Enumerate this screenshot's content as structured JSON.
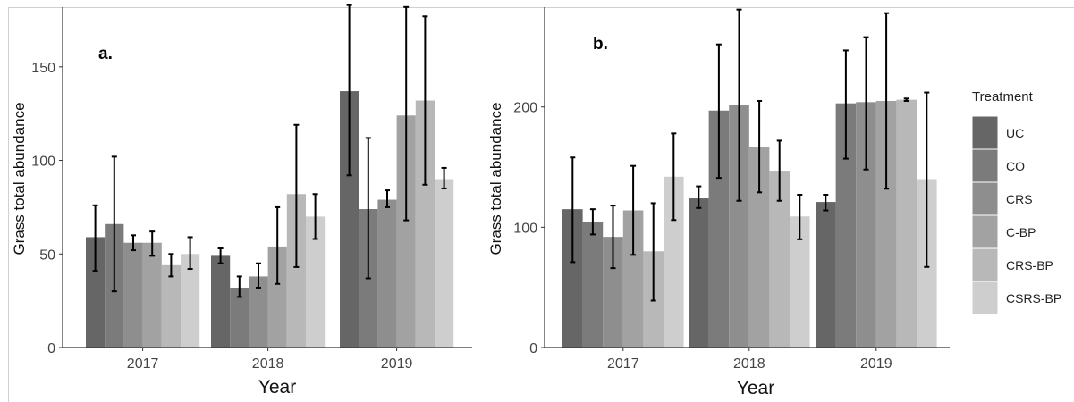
{
  "chart_data": [
    {
      "type": "bar",
      "panel_label": "a.",
      "xlabel": "Year",
      "ylabel": "Grass total abundance",
      "categories": [
        "2017",
        "2018",
        "2019"
      ],
      "ylim": [
        0,
        180
      ],
      "yticks": [
        0,
        50,
        100,
        150
      ],
      "grid": false,
      "series": [
        {
          "name": "UC",
          "values": [
            59,
            49,
            137
          ],
          "error": [
            [
              41,
              76
            ],
            [
              45,
              53
            ],
            [
              92,
              183
            ]
          ]
        },
        {
          "name": "CO",
          "values": [
            66,
            32,
            74
          ],
          "error": [
            [
              30,
              102
            ],
            [
              27,
              38
            ],
            [
              37,
              112
            ]
          ]
        },
        {
          "name": "CRS",
          "values": [
            56,
            38,
            79
          ],
          "error": [
            [
              52,
              60
            ],
            [
              32,
              45
            ],
            [
              75,
              84
            ]
          ]
        },
        {
          "name": "C-BP",
          "values": [
            56,
            54,
            124
          ],
          "error": [
            [
              49,
              62
            ],
            [
              34,
              75
            ],
            [
              68,
              182
            ]
          ]
        },
        {
          "name": "CRS-BP",
          "values": [
            44,
            82,
            132
          ],
          "error": [
            [
              38,
              50
            ],
            [
              43,
              119
            ],
            [
              87,
              177
            ]
          ]
        },
        {
          "name": "CSRS-BP",
          "values": [
            50,
            70,
            90
          ],
          "error": [
            [
              42,
              59
            ],
            [
              58,
              82
            ],
            [
              85,
              96
            ]
          ]
        }
      ]
    },
    {
      "type": "bar",
      "panel_label": "b.",
      "xlabel": "Year",
      "ylabel": "Grass total abundance",
      "categories": [
        "2017",
        "2018",
        "2019"
      ],
      "ylim": [
        0,
        280
      ],
      "yticks": [
        0,
        100,
        200
      ],
      "grid": false,
      "series": [
        {
          "name": "UC",
          "values": [
            115,
            124,
            121
          ],
          "error": [
            [
              71,
              158
            ],
            [
              116,
              134
            ],
            [
              114,
              127
            ]
          ]
        },
        {
          "name": "CO",
          "values": [
            104,
            197,
            203
          ],
          "error": [
            [
              94,
              115
            ],
            [
              141,
              252
            ],
            [
              157,
              247
            ]
          ]
        },
        {
          "name": "CRS",
          "values": [
            92,
            202,
            204
          ],
          "error": [
            [
              66,
              118
            ],
            [
              122,
              281
            ],
            [
              148,
              258
            ]
          ]
        },
        {
          "name": "C-BP",
          "values": [
            114,
            167,
            205
          ],
          "error": [
            [
              77,
              151
            ],
            [
              129,
              205
            ],
            [
              132,
              278
            ]
          ]
        },
        {
          "name": "CRS-BP",
          "values": [
            80,
            147,
            206
          ],
          "error": [
            [
              39,
              120
            ],
            [
              122,
              172
            ],
            [
              205,
              207
            ]
          ]
        },
        {
          "name": "CSRS-BP",
          "values": [
            142,
            109,
            140
          ],
          "error": [
            [
              106,
              178
            ],
            [
              90,
              127
            ],
            [
              67,
              212
            ]
          ]
        }
      ]
    }
  ],
  "legend": {
    "title": "Treatment",
    "position": "right",
    "entries": [
      "UC",
      "CO",
      "CRS",
      "C-BP",
      "CRS-BP",
      "CSRS-BP"
    ]
  },
  "colors": [
    "#666666",
    "#7b7b7b",
    "#8e8e8e",
    "#a2a2a2",
    "#b8b8b8",
    "#cecece"
  ]
}
